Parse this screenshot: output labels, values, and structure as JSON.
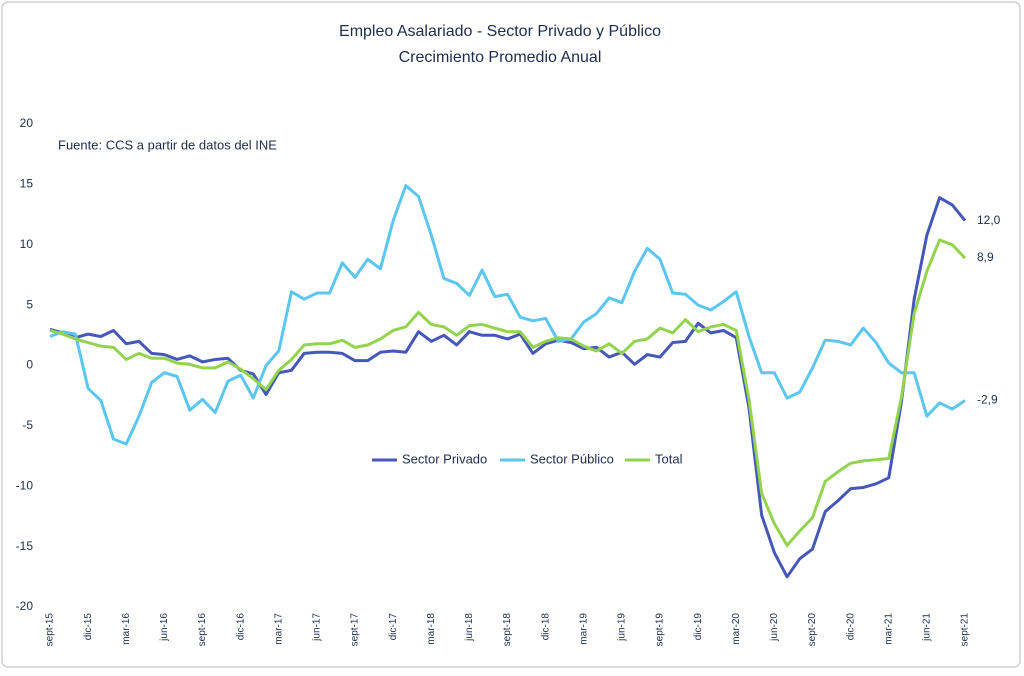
{
  "chart_data": {
    "type": "line",
    "title": "Empleo Asalariado - Sector Privado y Público",
    "subtitle": "Crecimiento Promedio Anual",
    "annotation": "Fuente: CCS a partir de datos del INE",
    "categories": [
      "sept-15",
      null,
      null,
      "dic-15",
      null,
      null,
      "mar-16",
      null,
      null,
      "jun-16",
      null,
      null,
      "sept-16",
      null,
      null,
      "dic-16",
      null,
      null,
      "mar-17",
      null,
      null,
      "jun-17",
      null,
      null,
      "sept-17",
      null,
      null,
      "dic-17",
      null,
      null,
      "mar-18",
      null,
      null,
      "jun-18",
      null,
      null,
      "sept-18",
      null,
      null,
      "dic-18",
      null,
      null,
      "mar-19",
      null,
      null,
      "jun-19",
      null,
      null,
      "sept-19",
      null,
      null,
      "dic-19",
      null,
      null,
      "mar-20",
      null,
      null,
      "jun-20",
      null,
      null,
      "sept-20",
      null,
      null,
      "dic-20",
      null,
      null,
      "mar-21",
      null,
      null,
      "jun-21",
      null,
      null,
      "sept-21"
    ],
    "series": [
      {
        "name": "Sector Privado",
        "color": "#4557b8",
        "values": [
          3.0,
          2.7,
          2.3,
          2.6,
          2.4,
          2.9,
          1.8,
          2.0,
          1.0,
          0.9,
          0.5,
          0.8,
          0.3,
          0.5,
          0.6,
          -0.4,
          -0.7,
          -2.4,
          -0.6,
          -0.4,
          1.0,
          1.1,
          1.1,
          1.0,
          0.4,
          0.4,
          1.1,
          1.2,
          1.1,
          2.8,
          2.0,
          2.5,
          1.7,
          2.8,
          2.5,
          2.5,
          2.2,
          2.6,
          1.0,
          1.8,
          2.1,
          1.9,
          1.4,
          1.5,
          0.7,
          1.1,
          0.1,
          0.9,
          0.7,
          1.9,
          2.0,
          3.5,
          2.7,
          2.9,
          2.3,
          -3.5,
          -12.4,
          -15.5,
          -17.5,
          -16.0,
          -15.2,
          -12.1,
          -11.2,
          -10.2,
          -10.1,
          -9.8,
          -9.3,
          -3.0,
          5.5,
          10.8,
          13.9,
          13.3,
          12.0
        ],
        "value_labels": [
          null,
          null,
          null,
          null,
          null,
          null,
          null,
          null,
          null,
          null,
          null,
          null,
          null,
          null,
          null,
          null,
          null,
          null,
          null,
          null,
          null,
          null,
          null,
          null,
          null,
          null,
          null,
          null,
          null,
          null,
          null,
          null,
          null,
          null,
          null,
          null,
          null,
          null,
          null,
          null,
          null,
          null,
          null,
          null,
          null,
          null,
          null,
          null,
          null,
          null,
          null,
          null,
          null,
          null,
          null,
          null,
          null,
          null,
          null,
          null,
          null,
          null,
          null,
          null,
          null,
          null,
          null,
          null,
          null,
          null,
          null,
          null,
          "12,0"
        ]
      },
      {
        "name": "Sector Público",
        "color": "#5bc6ef",
        "values": [
          2.4,
          2.8,
          2.6,
          -1.9,
          -2.9,
          -6.1,
          -6.5,
          -4.2,
          -1.4,
          -0.6,
          -0.9,
          -3.7,
          -2.8,
          -3.9,
          -1.3,
          -0.8,
          -2.7,
          0.0,
          1.2,
          6.1,
          5.5,
          6.0,
          6.0,
          8.5,
          7.3,
          8.8,
          8.0,
          12.0,
          14.9,
          14.0,
          10.8,
          7.2,
          6.8,
          5.8,
          7.9,
          5.7,
          5.9,
          4.0,
          3.7,
          3.9,
          2.0,
          2.2,
          3.6,
          4.3,
          5.6,
          5.2,
          7.8,
          9.7,
          8.8,
          6.0,
          5.9,
          5.0,
          4.6,
          5.3,
          6.1,
          2.4,
          -0.6,
          -0.6,
          -2.7,
          -2.2,
          -0.2,
          2.1,
          2.0,
          1.7,
          3.1,
          1.9,
          0.2,
          -0.6,
          -0.6,
          -4.2,
          -3.1,
          -3.6,
          -2.9
        ],
        "value_labels": [
          null,
          null,
          null,
          null,
          null,
          null,
          null,
          null,
          null,
          null,
          null,
          null,
          null,
          null,
          null,
          null,
          null,
          null,
          null,
          null,
          null,
          null,
          null,
          null,
          null,
          null,
          null,
          null,
          null,
          null,
          null,
          null,
          null,
          null,
          null,
          null,
          null,
          null,
          null,
          null,
          null,
          null,
          null,
          null,
          null,
          null,
          null,
          null,
          null,
          null,
          null,
          null,
          null,
          null,
          null,
          null,
          null,
          null,
          null,
          null,
          null,
          null,
          null,
          null,
          null,
          null,
          null,
          null,
          null,
          null,
          null,
          null,
          "-2,9"
        ]
      },
      {
        "name": "Total",
        "color": "#93d44f",
        "values": [
          2.9,
          2.6,
          2.2,
          1.9,
          1.6,
          1.5,
          0.5,
          1.0,
          0.6,
          0.6,
          0.2,
          0.1,
          -0.2,
          -0.2,
          0.3,
          -0.3,
          -1.1,
          -2.0,
          -0.4,
          0.5,
          1.7,
          1.8,
          1.8,
          2.1,
          1.5,
          1.7,
          2.2,
          2.9,
          3.2,
          4.4,
          3.4,
          3.2,
          2.5,
          3.3,
          3.4,
          3.1,
          2.8,
          2.8,
          1.5,
          2.0,
          2.3,
          2.2,
          1.6,
          1.2,
          1.8,
          1.0,
          2.0,
          2.2,
          3.1,
          2.7,
          3.8,
          2.8,
          3.2,
          3.4,
          2.9,
          -2.8,
          -10.6,
          -13.1,
          -14.9,
          -13.7,
          -12.6,
          -9.6,
          -8.8,
          -8.1,
          -7.9,
          -7.8,
          -7.7,
          -2.6,
          4.3,
          7.8,
          10.4,
          10.0,
          8.9
        ],
        "value_labels": [
          null,
          null,
          null,
          null,
          null,
          null,
          null,
          null,
          null,
          null,
          null,
          null,
          null,
          null,
          null,
          null,
          null,
          null,
          null,
          null,
          null,
          null,
          null,
          null,
          null,
          null,
          null,
          null,
          null,
          null,
          null,
          null,
          null,
          null,
          null,
          null,
          null,
          null,
          null,
          null,
          null,
          null,
          null,
          null,
          null,
          null,
          null,
          null,
          null,
          null,
          null,
          null,
          null,
          null,
          null,
          null,
          null,
          null,
          null,
          null,
          null,
          null,
          null,
          null,
          null,
          null,
          null,
          null,
          null,
          null,
          null,
          null,
          "8,9"
        ]
      }
    ],
    "ylim": [
      -20,
      20
    ],
    "yticks": [
      20,
      15,
      10,
      5,
      0,
      -5,
      -10,
      -15,
      -20
    ],
    "grid": false,
    "legend": "center"
  }
}
